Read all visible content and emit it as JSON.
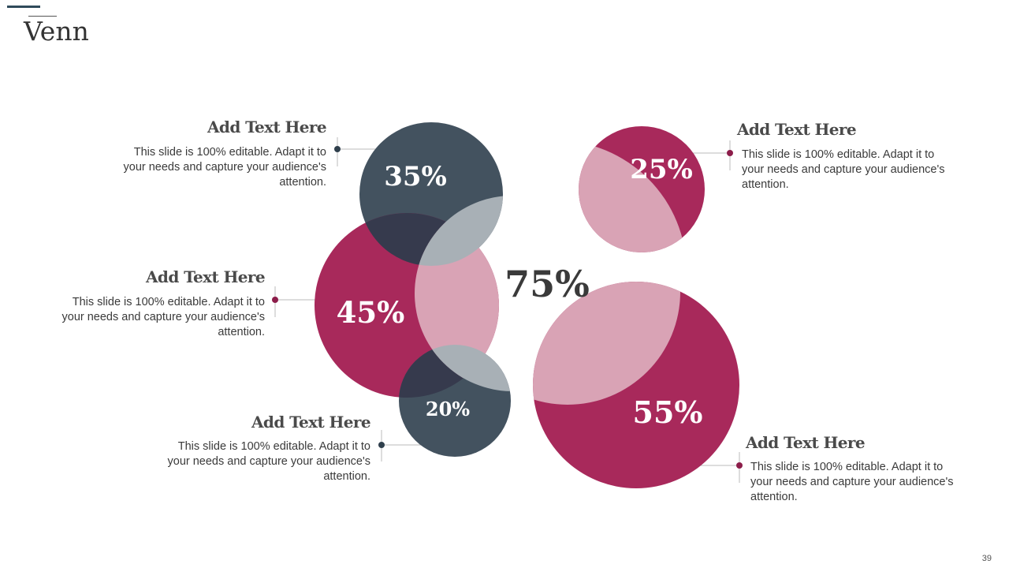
{
  "slide": {
    "title": "Venn",
    "page_number": "39"
  },
  "colors": {
    "dark": "#43525f",
    "crimson": "#a8295b",
    "light_pink": "#d9a3b5",
    "gray": "#a8b0b6",
    "navy_overlap": "#363a4d"
  },
  "diagram": {
    "center_label": "75%",
    "circles": [
      {
        "name": "top-dark",
        "label": "35%"
      },
      {
        "name": "mid-crimson",
        "label": "45%"
      },
      {
        "name": "bottom-dark",
        "label": "20%"
      },
      {
        "name": "top-right-crimson",
        "label": "25%"
      },
      {
        "name": "bottom-right-crimson",
        "label": "55%"
      }
    ]
  },
  "callouts": [
    {
      "heading": "Add Text Here",
      "body": "This slide is 100% editable. Adapt it to your needs and capture your audience's attention."
    },
    {
      "heading": "Add Text Here",
      "body": "This slide is 100% editable. Adapt it to your needs and capture your audience's attention."
    },
    {
      "heading": "Add Text Here",
      "body": "This slide is 100% editable. Adapt it to your needs and capture your audience's attention."
    },
    {
      "heading": "Add Text Here",
      "body": "This slide is 100% editable. Adapt it to your needs and capture your audience's attention."
    },
    {
      "heading": "Add Text Here",
      "body": "This slide is 100% editable. Adapt it to your needs and capture your audience's attention."
    }
  ]
}
